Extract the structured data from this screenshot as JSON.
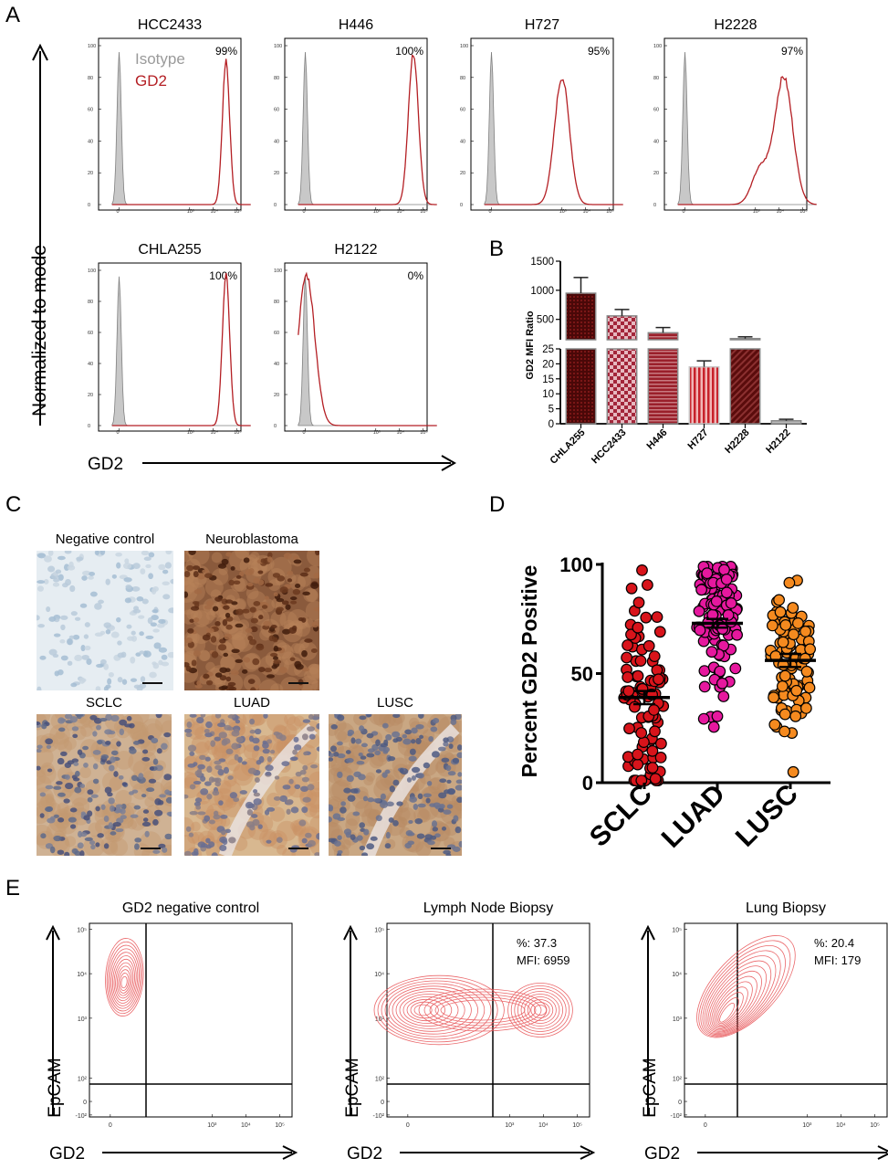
{
  "panel_labels": {
    "A": "A",
    "B": "B",
    "C": "C",
    "D": "D",
    "E": "E"
  },
  "panel_a": {
    "y_axis_label": "Normalized to mode",
    "x_axis_label": "GD2",
    "legend": {
      "isotype": "Isotype",
      "gd2": "GD2"
    },
    "colors": {
      "isotype_fill": "#c8c8c8",
      "isotype_line": "#808080",
      "gd2_line": "#b41f24"
    },
    "y_ticks": [
      "0",
      "20",
      "40",
      "60",
      "80",
      "100"
    ],
    "x_ticks": [
      "0",
      "10³",
      "10⁴",
      "10⁵"
    ],
    "histograms": [
      {
        "cell_line": "HCC2433",
        "percent": "99%",
        "gd2_peak_log": 4.55,
        "gd2_width": 0.22,
        "gd2_height": 90,
        "show_legend": true
      },
      {
        "cell_line": "H446",
        "percent": "100%",
        "gd2_peak_log": 4.6,
        "gd2_width": 0.3,
        "gd2_height": 95,
        "show_legend": false
      },
      {
        "cell_line": "H727",
        "percent": "95%",
        "gd2_peak_log": 3.0,
        "gd2_width": 0.45,
        "gd2_height": 80,
        "show_legend": false
      },
      {
        "cell_line": "H2228",
        "percent": "97%",
        "gd2_peak_log": 4.2,
        "gd2_width": 0.55,
        "gd2_height": 80,
        "show_legend": false
      },
      {
        "cell_line": "CHLA255",
        "percent": "100%",
        "gd2_peak_log": 4.55,
        "gd2_width": 0.22,
        "gd2_height": 97,
        "show_legend": false
      },
      {
        "cell_line": "H2122",
        "percent": "0%",
        "gd2_peak_log": 0.05,
        "gd2_width": 0.5,
        "gd2_height": 97,
        "show_legend": false
      }
    ]
  },
  "chart_data": [
    {
      "type": "bar",
      "panel": "B",
      "ylabel": "GD2 MFI Ratio",
      "categories": [
        "CHLA255",
        "HCC2433",
        "H446",
        "H727",
        "H2228",
        "H2122"
      ],
      "values": [
        950,
        560,
        270,
        19,
        170,
        1
      ],
      "errors": [
        270,
        110,
        90,
        2,
        30,
        0.5
      ],
      "y_upper_ticks": [
        "1500",
        "1000",
        "500"
      ],
      "y_lower_ticks": [
        "25",
        "20",
        "15",
        "10",
        "5",
        "0"
      ],
      "y_break": [
        25,
        150
      ],
      "colors": [
        "#5a0c0c",
        "#b2374a",
        "#9a1f2a",
        "#c0282e",
        "#5a0c0c",
        "#b9b9b9"
      ]
    },
    {
      "type": "scatter",
      "panel": "D",
      "ylabel": "Percent GD2 Positive",
      "categories": [
        "SCLC",
        "LUAD",
        "LUSC"
      ],
      "ylim": [
        0,
        100
      ],
      "y_ticks": [
        "0",
        "50",
        "100"
      ],
      "means": [
        39,
        73,
        56
      ],
      "sems": [
        3,
        2,
        3
      ],
      "counts": [
        90,
        120,
        100
      ],
      "colors": [
        "#d8141b",
        "#e6189e",
        "#f58a1f"
      ]
    }
  ],
  "panel_c": {
    "images": [
      {
        "title": "Negative control",
        "stain": "negative"
      },
      {
        "title": "Neuroblastoma",
        "stain": "neuroblastoma"
      },
      {
        "title": "SCLC",
        "stain": "sclc"
      },
      {
        "title": "LUAD",
        "stain": "luad"
      },
      {
        "title": "LUSC",
        "stain": "lusc"
      }
    ]
  },
  "panel_e": {
    "y_axis_label": "EpCAM",
    "x_axis_label": "GD2",
    "y_ticks": [
      "10⁵",
      "10⁴",
      "10³",
      "10²",
      "0",
      "-10²"
    ],
    "x_ticks": [
      "0",
      "10³",
      "10⁴",
      "10⁵"
    ],
    "contour_color": "#e8575a",
    "plots": [
      {
        "title": "GD2 negative control",
        "percent": "",
        "mfi": ""
      },
      {
        "title": "Lymph Node Biopsy",
        "percent": "%: 37.3",
        "mfi": "MFI: 6959"
      },
      {
        "title": "Lung Biopsy",
        "percent": "%: 20.4",
        "mfi": "MFI: 179"
      }
    ]
  }
}
